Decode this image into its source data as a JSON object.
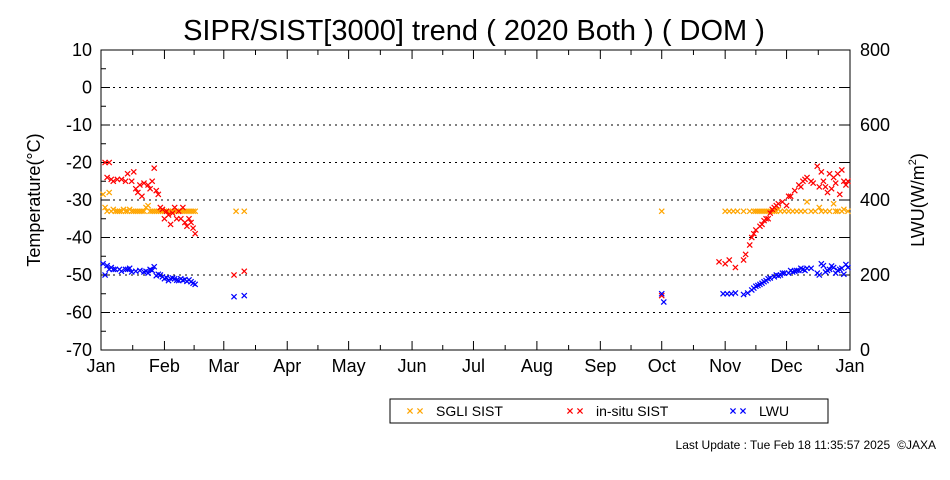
{
  "chart_data": {
    "type": "scatter",
    "title": "SIPR/SIST[3000] trend ( 2020 Both ) ( DOM )",
    "ylabel": "Temperature(°C)",
    "y2label_main": "LWU(W/m",
    "y2label_sup": "2",
    "y2label_end": ")",
    "ylim": [
      -70,
      10
    ],
    "y2lim": [
      0,
      800
    ],
    "yticks": [
      10,
      0,
      -10,
      -20,
      -30,
      -40,
      -50,
      -60,
      -70
    ],
    "y2ticks": [
      800,
      600,
      400,
      200,
      0
    ],
    "xlim": [
      0,
      366
    ],
    "xticks": [
      {
        "label": "Jan",
        "day": 0
      },
      {
        "label": "Feb",
        "day": 31
      },
      {
        "label": "Mar",
        "day": 60
      },
      {
        "label": "Apr",
        "day": 91
      },
      {
        "label": "May",
        "day": 121
      },
      {
        "label": "Jun",
        "day": 152
      },
      {
        "label": "Jul",
        "day": 182
      },
      {
        "label": "Aug",
        "day": 213
      },
      {
        "label": "Sep",
        "day": 244
      },
      {
        "label": "Oct",
        "day": 274
      },
      {
        "label": "Nov",
        "day": 305
      },
      {
        "label": "Dec",
        "day": 335
      },
      {
        "label": "Jan",
        "day": 366
      }
    ],
    "grid": "horizontal dotted",
    "legend_position": "bottom",
    "series": [
      {
        "name": "SGLI SIST",
        "color": "#ffa500",
        "axis": "left",
        "points": [
          [
            1,
            -28.5
          ],
          [
            2,
            -32
          ],
          [
            3,
            -33
          ],
          [
            4,
            -28
          ],
          [
            5,
            -33
          ],
          [
            6,
            -32.5
          ],
          [
            7,
            -33
          ],
          [
            8,
            -33
          ],
          [
            9,
            -33
          ],
          [
            10,
            -33
          ],
          [
            11,
            -32.5
          ],
          [
            12,
            -33
          ],
          [
            13,
            -33
          ],
          [
            14,
            -32.5
          ],
          [
            15,
            -33
          ],
          [
            16,
            -33
          ],
          [
            17,
            -33
          ],
          [
            18,
            -33
          ],
          [
            19,
            -33
          ],
          [
            20,
            -33
          ],
          [
            21,
            -33
          ],
          [
            22,
            -32
          ],
          [
            23,
            -31.5
          ],
          [
            24,
            -33
          ],
          [
            25,
            -33
          ],
          [
            26,
            -33
          ],
          [
            27,
            -33
          ],
          [
            28,
            -33
          ],
          [
            29,
            -33
          ],
          [
            30,
            -33
          ],
          [
            31,
            -33
          ],
          [
            32,
            -33
          ],
          [
            33,
            -33
          ],
          [
            34,
            -33
          ],
          [
            35,
            -33
          ],
          [
            36,
            -33
          ],
          [
            37,
            -33
          ],
          [
            38,
            -33
          ],
          [
            39,
            -33
          ],
          [
            40,
            -33
          ],
          [
            41,
            -33
          ],
          [
            42,
            -33
          ],
          [
            43,
            -33
          ],
          [
            44,
            -33
          ],
          [
            45,
            -33
          ],
          [
            46,
            -33
          ],
          [
            66,
            -33
          ],
          [
            70,
            -33
          ],
          [
            274,
            -33
          ],
          [
            305,
            -33
          ],
          [
            307,
            -33
          ],
          [
            309,
            -33
          ],
          [
            311,
            -33
          ],
          [
            314,
            -33
          ],
          [
            317,
            -33
          ],
          [
            319,
            -33
          ],
          [
            320,
            -33
          ],
          [
            321,
            -33
          ],
          [
            322,
            -33
          ],
          [
            323,
            -33
          ],
          [
            324,
            -33
          ],
          [
            325,
            -33
          ],
          [
            326,
            -33
          ],
          [
            327,
            -33
          ],
          [
            328,
            -33
          ],
          [
            329,
            -33
          ],
          [
            330,
            -33
          ],
          [
            331,
            -32.5
          ],
          [
            332,
            -33
          ],
          [
            334,
            -33
          ],
          [
            336,
            -33
          ],
          [
            338,
            -33
          ],
          [
            340,
            -33
          ],
          [
            342,
            -33
          ],
          [
            344,
            -33
          ],
          [
            345,
            -30.5
          ],
          [
            347,
            -33
          ],
          [
            349,
            -33
          ],
          [
            351,
            -32
          ],
          [
            352,
            -33
          ],
          [
            354,
            -33
          ],
          [
            356,
            -33
          ],
          [
            358,
            -31
          ],
          [
            359,
            -33
          ],
          [
            360,
            -33
          ],
          [
            362,
            -33
          ],
          [
            363,
            -32.5
          ],
          [
            365,
            -33
          ]
        ]
      },
      {
        "name": "in-situ SIST",
        "color": "#ff0000",
        "axis": "left",
        "points": [
          [
            2,
            -20
          ],
          [
            3,
            -24
          ],
          [
            4,
            -20
          ],
          [
            5,
            -24.5
          ],
          [
            6,
            -25
          ],
          [
            8,
            -24.5
          ],
          [
            10,
            -24.5
          ],
          [
            12,
            -25
          ],
          [
            13,
            -23
          ],
          [
            15,
            -25
          ],
          [
            16,
            -22.5
          ],
          [
            17,
            -27
          ],
          [
            18,
            -28
          ],
          [
            19,
            -26
          ],
          [
            20,
            -29
          ],
          [
            21,
            -25.5
          ],
          [
            23,
            -26
          ],
          [
            24,
            -27
          ],
          [
            25,
            -25
          ],
          [
            26,
            -21.5
          ],
          [
            27,
            -27.5
          ],
          [
            28,
            -28.5
          ],
          [
            29,
            -32
          ],
          [
            30,
            -32.5
          ],
          [
            31,
            -35
          ],
          [
            32,
            -33
          ],
          [
            33,
            -34
          ],
          [
            34,
            -36.5
          ],
          [
            35,
            -33.5
          ],
          [
            36,
            -32
          ],
          [
            37,
            -35
          ],
          [
            38,
            -33
          ],
          [
            39,
            -35
          ],
          [
            40,
            -32
          ],
          [
            41,
            -36
          ],
          [
            42,
            -37
          ],
          [
            43,
            -35
          ],
          [
            44,
            -36
          ],
          [
            45,
            -37.5
          ],
          [
            46,
            -39
          ],
          [
            65,
            -50
          ],
          [
            70,
            -49
          ],
          [
            274,
            -55.5
          ],
          [
            302,
            -46.5
          ],
          [
            305,
            -47
          ],
          [
            307,
            -46
          ],
          [
            310,
            -48
          ],
          [
            314,
            -46
          ],
          [
            315,
            -44.5
          ],
          [
            317,
            -42
          ],
          [
            318,
            -40
          ],
          [
            319,
            -39
          ],
          [
            320,
            -38
          ],
          [
            322,
            -37
          ],
          [
            323,
            -36.5
          ],
          [
            324,
            -35.5
          ],
          [
            325,
            -35
          ],
          [
            326,
            -35
          ],
          [
            327,
            -33.5
          ],
          [
            328,
            -32.5
          ],
          [
            329,
            -32
          ],
          [
            330,
            -31.5
          ],
          [
            331,
            -31
          ],
          [
            333,
            -30.5
          ],
          [
            335,
            -31.5
          ],
          [
            336,
            -29
          ],
          [
            337,
            -29
          ],
          [
            339,
            -27.5
          ],
          [
            341,
            -26
          ],
          [
            342,
            -26.5
          ],
          [
            343,
            -25
          ],
          [
            344,
            -24.5
          ],
          [
            345,
            -24
          ],
          [
            347,
            -25
          ],
          [
            348,
            -25.5
          ],
          [
            350,
            -21
          ],
          [
            351,
            -26.5
          ],
          [
            352,
            -22.5
          ],
          [
            353,
            -25
          ],
          [
            354,
            -26.5
          ],
          [
            355,
            -28
          ],
          [
            356,
            -23
          ],
          [
            357,
            -27
          ],
          [
            358,
            -24
          ],
          [
            359,
            -25.5
          ],
          [
            360,
            -23
          ],
          [
            361,
            -28.5
          ],
          [
            362,
            -22
          ],
          [
            363,
            -25
          ],
          [
            364,
            -26
          ],
          [
            365,
            -25
          ]
        ]
      },
      {
        "name": "LWU",
        "color": "#0000ff",
        "axis": "right",
        "points": [
          [
            1,
            230
          ],
          [
            2,
            200
          ],
          [
            3,
            225
          ],
          [
            4,
            215
          ],
          [
            5,
            220
          ],
          [
            6,
            215
          ],
          [
            7,
            215
          ],
          [
            9,
            215
          ],
          [
            10,
            210
          ],
          [
            12,
            215
          ],
          [
            13,
            215
          ],
          [
            14,
            218
          ],
          [
            15,
            208
          ],
          [
            17,
            210
          ],
          [
            19,
            212
          ],
          [
            21,
            208
          ],
          [
            22,
            210
          ],
          [
            23,
            205
          ],
          [
            24,
            215
          ],
          [
            25,
            212
          ],
          [
            26,
            222
          ],
          [
            27,
            198
          ],
          [
            28,
            202
          ],
          [
            29,
            200
          ],
          [
            30,
            195
          ],
          [
            31,
            190
          ],
          [
            32,
            193
          ],
          [
            33,
            185
          ],
          [
            34,
            190
          ],
          [
            35,
            192
          ],
          [
            36,
            190
          ],
          [
            37,
            186
          ],
          [
            38,
            185
          ],
          [
            39,
            190
          ],
          [
            40,
            186
          ],
          [
            41,
            188
          ],
          [
            42,
            183
          ],
          [
            43,
            187
          ],
          [
            44,
            182
          ],
          [
            45,
            178
          ],
          [
            46,
            175
          ],
          [
            65,
            142
          ],
          [
            70,
            145
          ],
          [
            274,
            150
          ],
          [
            275,
            128
          ],
          [
            304,
            150
          ],
          [
            306,
            150
          ],
          [
            308,
            150
          ],
          [
            310,
            152
          ],
          [
            314,
            148
          ],
          [
            316,
            152
          ],
          [
            318,
            160
          ],
          [
            319,
            165
          ],
          [
            320,
            170
          ],
          [
            321,
            172
          ],
          [
            322,
            175
          ],
          [
            323,
            178
          ],
          [
            324,
            182
          ],
          [
            325,
            185
          ],
          [
            326,
            190
          ],
          [
            327,
            192
          ],
          [
            329,
            195
          ],
          [
            330,
            200
          ],
          [
            331,
            198
          ],
          [
            332,
            200
          ],
          [
            333,
            205
          ],
          [
            334,
            205
          ],
          [
            336,
            205
          ],
          [
            337,
            212
          ],
          [
            338,
            208
          ],
          [
            339,
            210
          ],
          [
            340,
            212
          ],
          [
            341,
            212
          ],
          [
            342,
            218
          ],
          [
            343,
            215
          ],
          [
            344,
            212
          ],
          [
            345,
            218
          ],
          [
            347,
            218
          ],
          [
            350,
            205
          ],
          [
            351,
            200
          ],
          [
            352,
            230
          ],
          [
            353,
            225
          ],
          [
            354,
            208
          ],
          [
            355,
            212
          ],
          [
            356,
            215
          ],
          [
            357,
            224
          ],
          [
            358,
            220
          ],
          [
            359,
            205
          ],
          [
            360,
            212
          ],
          [
            361,
            215
          ],
          [
            362,
            218
          ],
          [
            363,
            202
          ],
          [
            364,
            228
          ],
          [
            365,
            220
          ]
        ]
      }
    ],
    "footer": "Last Update : Tue Feb 18 11:35:57 2025",
    "copyright": "©JAXA"
  }
}
